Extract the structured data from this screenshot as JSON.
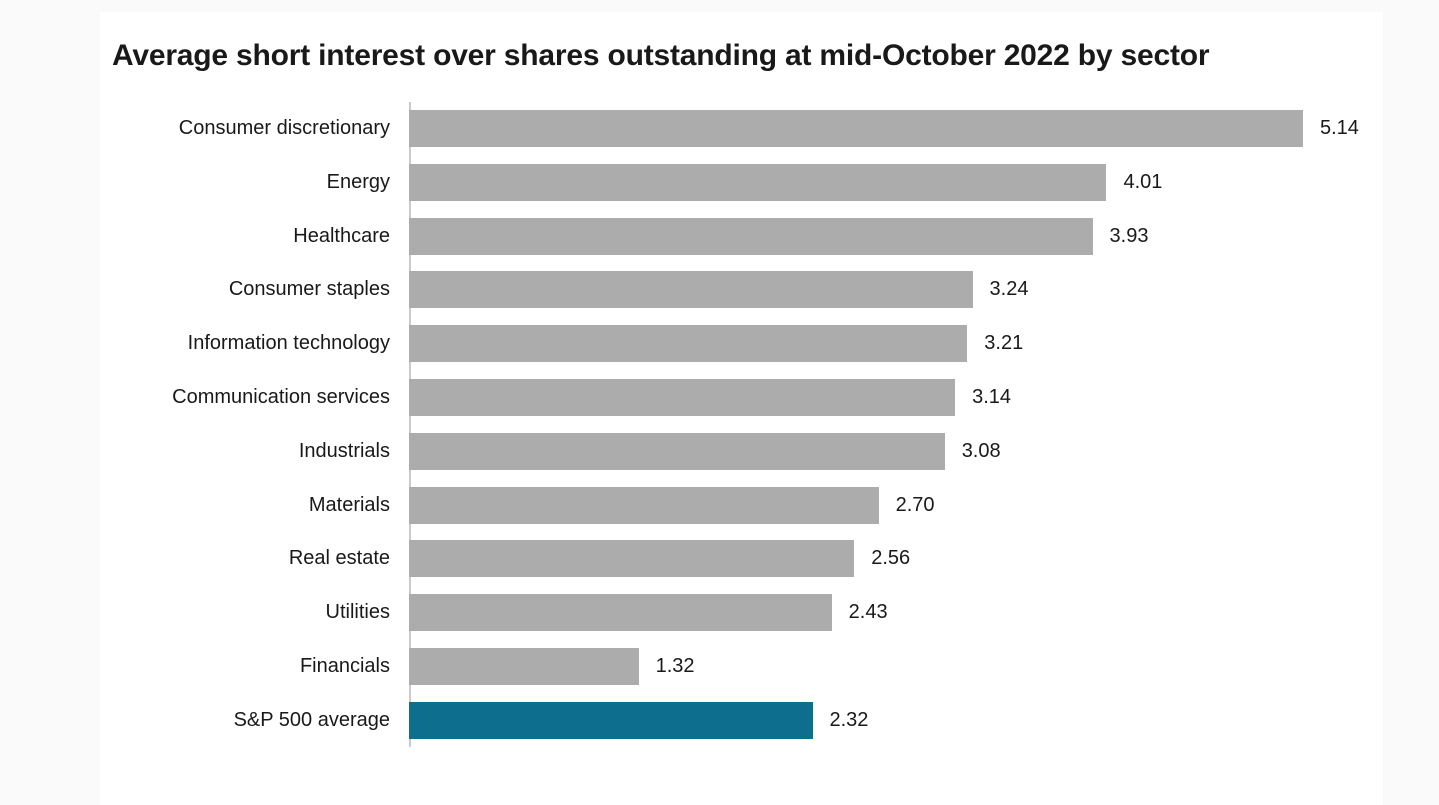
{
  "page": {
    "background_color": "#fafafa",
    "card_background_color": "#ffffff"
  },
  "chart_data": {
    "type": "bar",
    "orientation": "horizontal",
    "title": "Average short interest over shares outstanding at mid-October 2022 by sector",
    "categories": [
      "Consumer discretionary",
      "Energy",
      "Healthcare",
      "Consumer staples",
      "Information technology",
      "Communication services",
      "Industrials",
      "Materials",
      "Real estate",
      "Utilities",
      "Financials",
      "S&P 500 average"
    ],
    "values": [
      5.14,
      4.01,
      3.93,
      3.24,
      3.21,
      3.14,
      3.08,
      2.7,
      2.56,
      2.43,
      1.32,
      2.32
    ],
    "value_labels": [
      "5.14",
      "4.01",
      "3.93",
      "3.24",
      "3.21",
      "3.14",
      "3.08",
      "2.70",
      "2.56",
      "2.43",
      "1.32",
      "2.32"
    ],
    "highlight_index": 11,
    "bar_color": "#acacac",
    "highlight_color": "#0d6f8d",
    "axis_line_color": "#cbcbcb",
    "text_color": "#191919",
    "xlim": [
      0,
      5.6
    ],
    "grid": false,
    "legend": null,
    "xlabel": "",
    "ylabel": "",
    "value_label_position": "end-of-bar"
  }
}
